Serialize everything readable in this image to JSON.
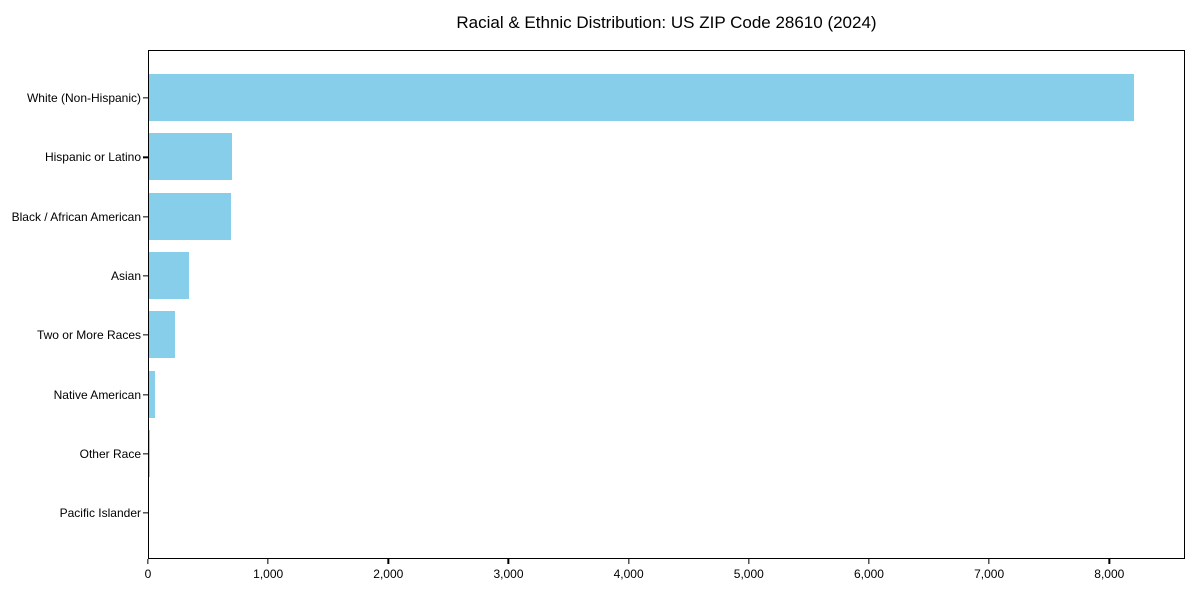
{
  "chart_data": {
    "type": "bar",
    "orientation": "horizontal",
    "title": "Racial & Ethnic Distribution: US ZIP Code 28610 (2024)",
    "categories": [
      "White (Non-Hispanic)",
      "Hispanic or Latino",
      "Black / African American",
      "Asian",
      "Two or More Races",
      "Native American",
      "Other Race",
      "Pacific Islander"
    ],
    "values": [
      8220,
      695,
      685,
      330,
      220,
      47,
      8,
      0
    ],
    "xlabel": "",
    "ylabel": "",
    "xlim": [
      0,
      8630
    ],
    "x_ticks": [
      0,
      1000,
      2000,
      3000,
      4000,
      5000,
      6000,
      7000,
      8000
    ],
    "x_tick_labels": [
      "0",
      "1,000",
      "2,000",
      "3,000",
      "4,000",
      "5,000",
      "6,000",
      "7,000",
      "8,000"
    ],
    "bar_color": "#87CEEB",
    "axis_color": "#000000",
    "grid": false,
    "legend_position": "none"
  }
}
